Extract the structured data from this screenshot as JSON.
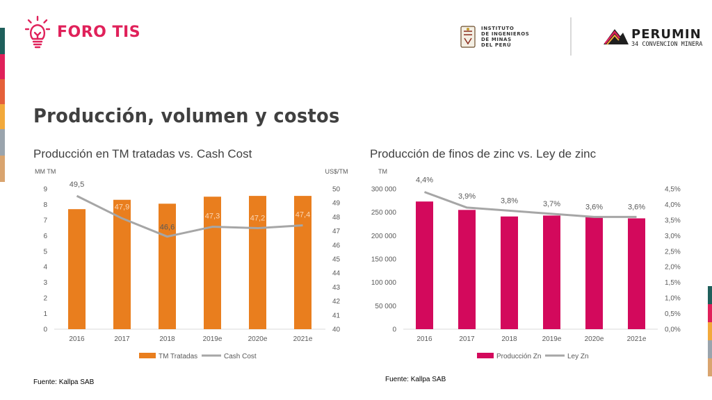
{
  "brand": {
    "name": "FORO TIS",
    "institute_lines": [
      "INSTITUTO",
      "DE INGENIEROS",
      "DE MINAS",
      "DEL PERÚ"
    ],
    "event_name": "PERUMIN",
    "event_sub": "34 CONVENCION MINERA",
    "colors": {
      "pink": "#e0215a",
      "orange": "#e97e1e",
      "magenta": "#d3095c",
      "gray": "#a6a6a6"
    }
  },
  "page": {
    "title": "Producción, volumen y costos"
  },
  "charts": {
    "left": {
      "subtitle": "Producción en TM tratadas vs. Cash Cost",
      "source": "Fuente: Kallpa SAB",
      "left_unit": "MM TM",
      "right_unit": "US$/TM",
      "legend_bar": "TM Tratadas",
      "legend_line": "Cash Cost"
    },
    "right": {
      "subtitle": "Producción de finos de zinc vs. Ley de zinc",
      "source": "Fuente: Kallpa SAB",
      "left_unit": "TM",
      "legend_bar": "Producción Zn",
      "legend_line": "Ley Zn"
    }
  },
  "chart_data": [
    {
      "type": "bar",
      "categories": [
        "2016",
        "2017",
        "2018",
        "2019e",
        "2020e",
        "2021e"
      ],
      "series": [
        {
          "name": "TM Tratadas",
          "type": "bar",
          "axis": "left",
          "values": [
            7.7,
            8.3,
            8.05,
            8.5,
            8.55,
            8.55
          ],
          "color": "#e97e1e"
        },
        {
          "name": "Cash Cost",
          "type": "line",
          "axis": "right",
          "values": [
            49.5,
            47.9,
            46.6,
            47.3,
            47.2,
            47.4
          ],
          "labels": [
            "49,5",
            "47,9",
            "46,6",
            "47,3",
            "47,2",
            "47,4"
          ],
          "color": "#a6a6a6"
        }
      ],
      "left_axis": {
        "label": "MM TM",
        "ylim": [
          0,
          9
        ],
        "ticks": [
          "0",
          "1",
          "2",
          "3",
          "4",
          "5",
          "6",
          "7",
          "8",
          "9"
        ]
      },
      "right_axis": {
        "label": "US$/TM",
        "ylim": [
          40,
          50
        ],
        "ticks": [
          "40",
          "41",
          "42",
          "43",
          "44",
          "45",
          "46",
          "47",
          "48",
          "49",
          "50"
        ]
      },
      "legend": "bottom",
      "grid": false
    },
    {
      "type": "bar",
      "categories": [
        "2016",
        "2017",
        "2018",
        "2019e",
        "2020e",
        "2021e"
      ],
      "series": [
        {
          "name": "Producción Zn",
          "type": "bar",
          "axis": "left",
          "values": [
            273000,
            255000,
            241000,
            243000,
            242000,
            237000
          ],
          "color": "#d3095c"
        },
        {
          "name": "Ley Zn",
          "type": "line",
          "axis": "right",
          "values": [
            4.4,
            3.9,
            3.8,
            3.7,
            3.6,
            3.6
          ],
          "labels": [
            "4,4%",
            "3,9%",
            "3,8%",
            "3,7%",
            "3,6%",
            "3,6%"
          ],
          "color": "#a6a6a6"
        }
      ],
      "left_axis": {
        "label": "TM",
        "ylim": [
          0,
          300000
        ],
        "ticks": [
          "0",
          "50 000",
          "100 000",
          "150 000",
          "200 000",
          "250 000",
          "300 000"
        ]
      },
      "right_axis": {
        "label": "",
        "ylim": [
          0,
          4.5
        ],
        "ticks": [
          "0,0%",
          "0,5%",
          "1,0%",
          "1,5%",
          "2,0%",
          "2,5%",
          "3,0%",
          "3,5%",
          "4,0%",
          "4,5%"
        ]
      },
      "legend": "bottom",
      "grid": false
    }
  ]
}
